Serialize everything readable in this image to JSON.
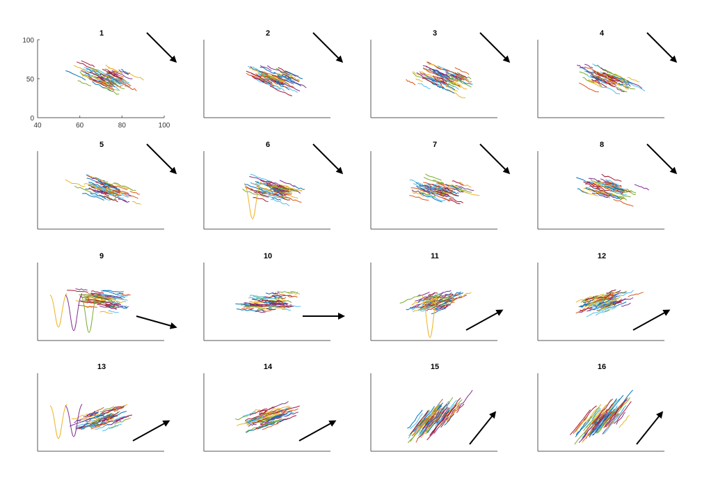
{
  "chart_data": {
    "type": "line",
    "description_grid": "4x4 small multiples, each panel a cloud of short colored line segments with a black arrow indicating trend direction",
    "panels": [
      {
        "title": "1",
        "arrow": "down-right"
      },
      {
        "title": "2",
        "arrow": "down-right"
      },
      {
        "title": "3",
        "arrow": "down-right"
      },
      {
        "title": "4",
        "arrow": "down-right"
      },
      {
        "title": "5",
        "arrow": "down-right"
      },
      {
        "title": "6",
        "arrow": "down-right"
      },
      {
        "title": "7",
        "arrow": "down-right"
      },
      {
        "title": "8",
        "arrow": "down-right"
      },
      {
        "title": "9",
        "arrow": "right-slightly-down"
      },
      {
        "title": "10",
        "arrow": "right"
      },
      {
        "title": "11",
        "arrow": "up-right"
      },
      {
        "title": "12",
        "arrow": "up-right"
      },
      {
        "title": "13",
        "arrow": "up-right"
      },
      {
        "title": "14",
        "arrow": "up-right"
      },
      {
        "title": "15",
        "arrow": "up-right"
      },
      {
        "title": "16",
        "arrow": "up-right"
      }
    ],
    "first_panel_axes": {
      "xlim": [
        40,
        100
      ],
      "ylim": [
        0,
        100
      ],
      "xticks": [
        "40",
        "60",
        "80",
        "100"
      ],
      "yticks": [
        "0",
        "50",
        "100"
      ]
    },
    "series_colors": [
      "#0072BD",
      "#D95319",
      "#EDB120",
      "#7E2F8E",
      "#77AC30",
      "#4DBEEE",
      "#A2142F"
    ]
  }
}
